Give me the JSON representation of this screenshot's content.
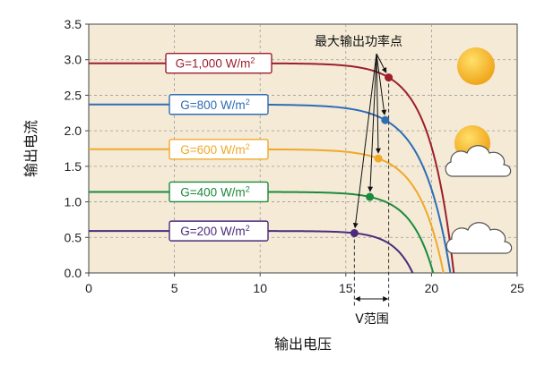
{
  "chart_data": {
    "type": "line",
    "xlabel": "输出电压",
    "ylabel": "输出电流",
    "xlim": [
      0,
      25
    ],
    "ylim": [
      0,
      3.5
    ],
    "xticks": [
      "0",
      "5",
      "10",
      "15",
      "20",
      "25"
    ],
    "yticks": [
      "0.0",
      "0.5",
      "1.0",
      "1.5",
      "2.0",
      "2.5",
      "3.0",
      "3.5"
    ],
    "grid": "dashed",
    "series": [
      {
        "name": "G=1,000 W/m²",
        "label_main": "G=1,000 W/m",
        "label_sup": "2",
        "color": "#9c1f2b",
        "isc": 2.95,
        "voc": 21.3,
        "mpp": [
          17.5,
          2.75
        ]
      },
      {
        "name": "G=800 W/m²",
        "label_main": "G=800 W/m",
        "label_sup": "2",
        "color": "#2f6db5",
        "isc": 2.37,
        "voc": 21.1,
        "mpp": [
          17.3,
          2.15
        ]
      },
      {
        "name": "G=600 W/m²",
        "label_main": "G=600 W/m",
        "label_sup": "2",
        "color": "#f0a928",
        "isc": 1.74,
        "voc": 20.7,
        "mpp": [
          16.9,
          1.61
        ]
      },
      {
        "name": "G=400 W/m²",
        "label_main": "G=400 W/m",
        "label_sup": "2",
        "color": "#1c8a3c",
        "isc": 1.14,
        "voc": 20.1,
        "mpp": [
          16.4,
          1.07
        ]
      },
      {
        "name": "G=200 W/m²",
        "label_main": "G=200 W/m",
        "label_sup": "2",
        "color": "#4b2a7b",
        "isc": 0.59,
        "voc": 18.9,
        "mpp": [
          15.5,
          0.56
        ]
      }
    ],
    "annotations": {
      "mpp_label": "最大输出功率点",
      "v_range_label": "V范围",
      "v_range": [
        15.5,
        17.5
      ]
    },
    "colors": {
      "plot_bg": "#f4ead6",
      "sun": "#f3b21b",
      "cloud": "#ffffff"
    },
    "icons": [
      "sun-icon",
      "sun-behind-cloud-icon",
      "cloud-icon"
    ]
  }
}
